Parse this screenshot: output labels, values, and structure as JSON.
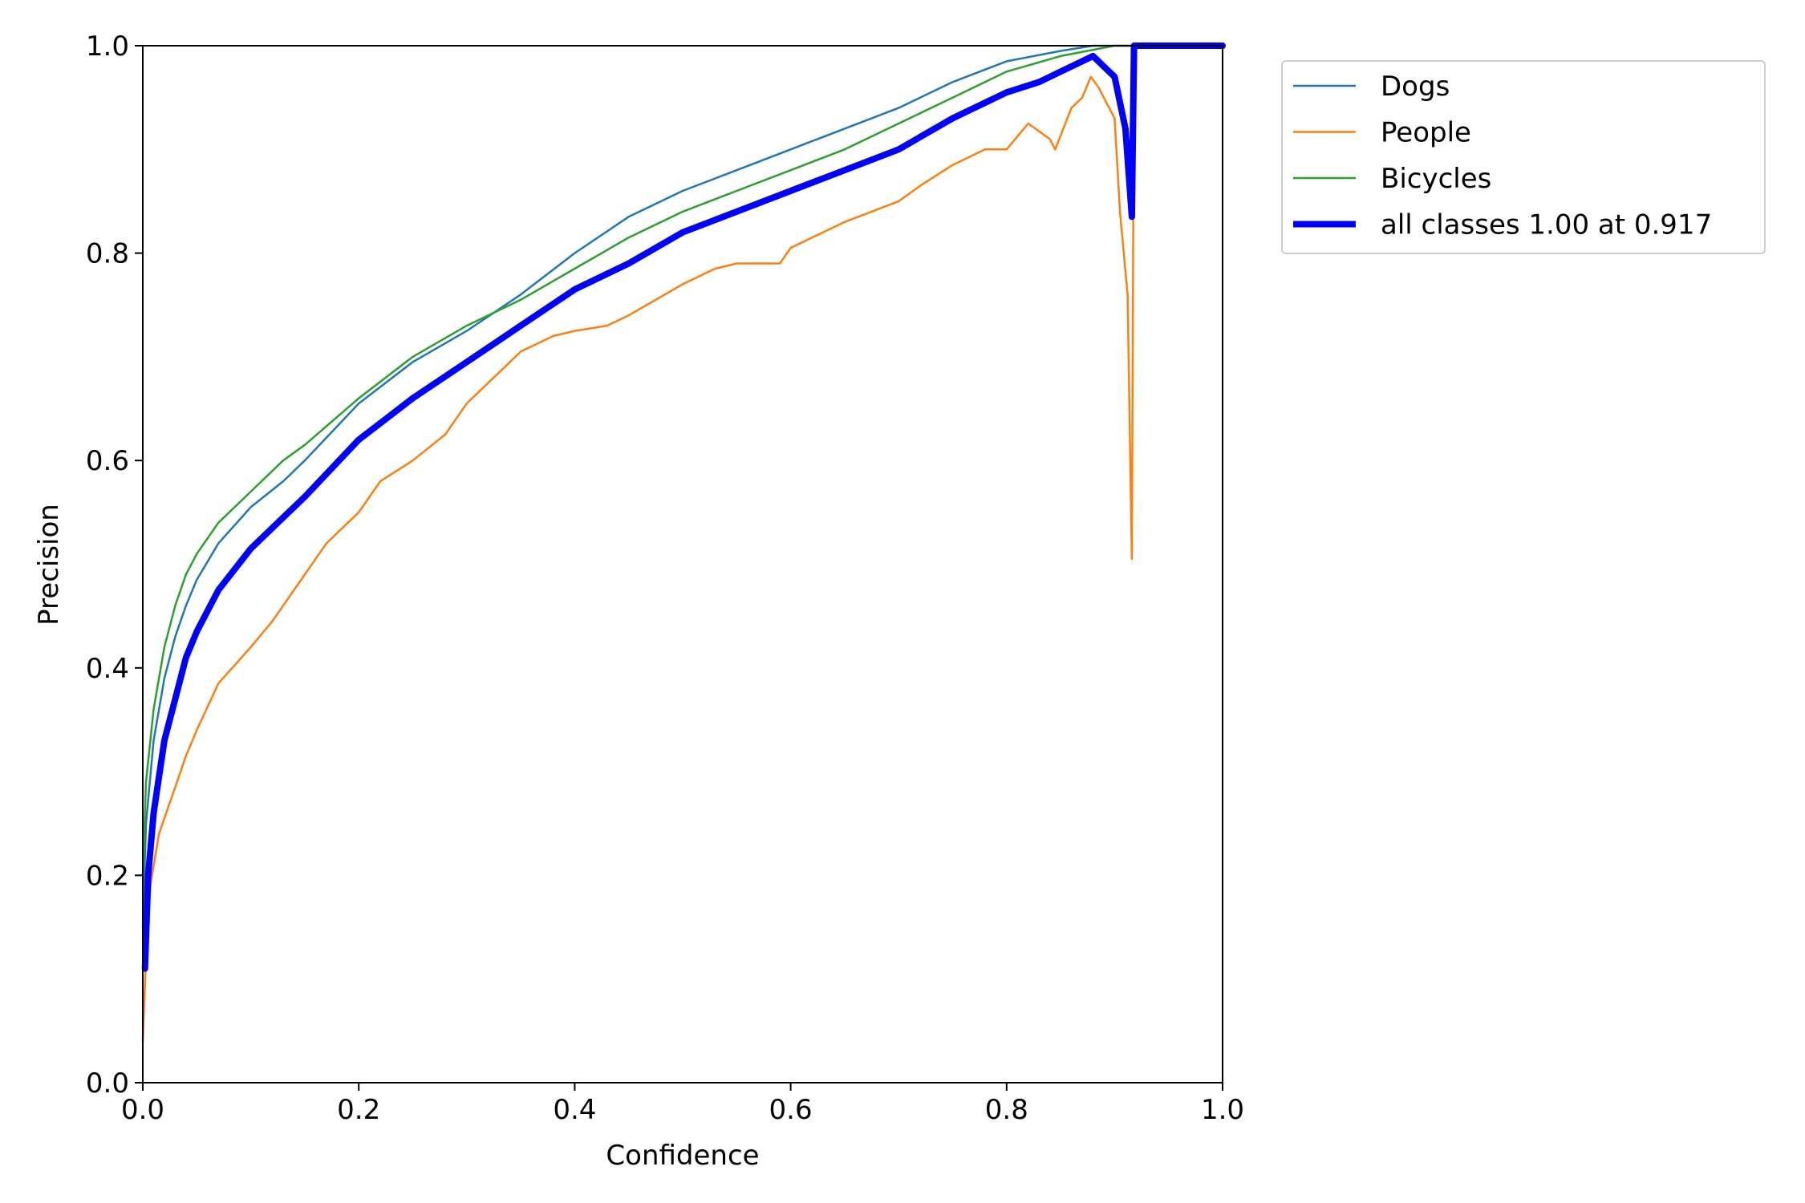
{
  "chart_data": {
    "type": "line",
    "title": "",
    "xlabel": "Confidence",
    "ylabel": "Precision",
    "xlim": [
      0,
      1
    ],
    "ylim": [
      0,
      1
    ],
    "xticks": [
      "0.0",
      "0.2",
      "0.4",
      "0.6",
      "0.8",
      "1.0"
    ],
    "yticks": [
      "0.0",
      "0.2",
      "0.4",
      "0.6",
      "0.8",
      "1.0"
    ],
    "grid": false,
    "legend_position": "outside-top-right",
    "series": [
      {
        "name": "Dogs",
        "color": "#1f77b4",
        "width": "thin",
        "points": [
          [
            0.0,
            0.15
          ],
          [
            0.003,
            0.25
          ],
          [
            0.01,
            0.33
          ],
          [
            0.02,
            0.39
          ],
          [
            0.03,
            0.43
          ],
          [
            0.04,
            0.46
          ],
          [
            0.05,
            0.485
          ],
          [
            0.07,
            0.52
          ],
          [
            0.1,
            0.555
          ],
          [
            0.13,
            0.58
          ],
          [
            0.15,
            0.6
          ],
          [
            0.2,
            0.655
          ],
          [
            0.25,
            0.695
          ],
          [
            0.3,
            0.725
          ],
          [
            0.35,
            0.76
          ],
          [
            0.4,
            0.8
          ],
          [
            0.45,
            0.835
          ],
          [
            0.5,
            0.86
          ],
          [
            0.55,
            0.88
          ],
          [
            0.6,
            0.9
          ],
          [
            0.65,
            0.92
          ],
          [
            0.7,
            0.94
          ],
          [
            0.75,
            0.965
          ],
          [
            0.8,
            0.985
          ],
          [
            0.85,
            0.995
          ],
          [
            0.88,
            1.0
          ],
          [
            1.0,
            1.0
          ]
        ]
      },
      {
        "name": "People",
        "color": "#ff7f0e",
        "width": "thin",
        "points": [
          [
            0.0,
            0.04
          ],
          [
            0.003,
            0.12
          ],
          [
            0.007,
            0.19
          ],
          [
            0.015,
            0.24
          ],
          [
            0.03,
            0.285
          ],
          [
            0.04,
            0.315
          ],
          [
            0.05,
            0.34
          ],
          [
            0.07,
            0.385
          ],
          [
            0.1,
            0.42
          ],
          [
            0.12,
            0.445
          ],
          [
            0.15,
            0.49
          ],
          [
            0.17,
            0.52
          ],
          [
            0.2,
            0.55
          ],
          [
            0.22,
            0.58
          ],
          [
            0.25,
            0.6
          ],
          [
            0.28,
            0.625
          ],
          [
            0.3,
            0.655
          ],
          [
            0.33,
            0.685
          ],
          [
            0.35,
            0.705
          ],
          [
            0.38,
            0.72
          ],
          [
            0.4,
            0.725
          ],
          [
            0.43,
            0.73
          ],
          [
            0.45,
            0.74
          ],
          [
            0.5,
            0.77
          ],
          [
            0.53,
            0.785
          ],
          [
            0.55,
            0.79
          ],
          [
            0.59,
            0.79
          ],
          [
            0.6,
            0.805
          ],
          [
            0.65,
            0.83
          ],
          [
            0.7,
            0.85
          ],
          [
            0.72,
            0.865
          ],
          [
            0.75,
            0.885
          ],
          [
            0.78,
            0.9
          ],
          [
            0.8,
            0.9
          ],
          [
            0.82,
            0.925
          ],
          [
            0.84,
            0.91
          ],
          [
            0.845,
            0.9
          ],
          [
            0.86,
            0.94
          ],
          [
            0.87,
            0.95
          ],
          [
            0.878,
            0.97
          ],
          [
            0.885,
            0.96
          ],
          [
            0.89,
            0.95
          ],
          [
            0.9,
            0.93
          ],
          [
            0.905,
            0.84
          ],
          [
            0.912,
            0.76
          ],
          [
            0.916,
            0.505
          ],
          [
            0.918,
            1.0
          ],
          [
            1.0,
            1.0
          ]
        ]
      },
      {
        "name": "Bicycles",
        "color": "#2ca02c",
        "width": "thin",
        "points": [
          [
            0.0,
            0.2
          ],
          [
            0.003,
            0.29
          ],
          [
            0.01,
            0.36
          ],
          [
            0.02,
            0.42
          ],
          [
            0.03,
            0.46
          ],
          [
            0.04,
            0.49
          ],
          [
            0.05,
            0.51
          ],
          [
            0.07,
            0.54
          ],
          [
            0.1,
            0.57
          ],
          [
            0.13,
            0.6
          ],
          [
            0.15,
            0.615
          ],
          [
            0.2,
            0.66
          ],
          [
            0.25,
            0.7
          ],
          [
            0.3,
            0.73
          ],
          [
            0.35,
            0.755
          ],
          [
            0.4,
            0.785
          ],
          [
            0.45,
            0.815
          ],
          [
            0.5,
            0.84
          ],
          [
            0.55,
            0.86
          ],
          [
            0.6,
            0.88
          ],
          [
            0.65,
            0.9
          ],
          [
            0.7,
            0.925
          ],
          [
            0.75,
            0.95
          ],
          [
            0.8,
            0.975
          ],
          [
            0.85,
            0.99
          ],
          [
            0.9,
            1.0
          ],
          [
            1.0,
            1.0
          ]
        ]
      },
      {
        "name": "all classes 1.00 at 0.917",
        "color": "#0000ff",
        "width": "thick",
        "points": [
          [
            0.002,
            0.11
          ],
          [
            0.005,
            0.2
          ],
          [
            0.01,
            0.26
          ],
          [
            0.02,
            0.33
          ],
          [
            0.03,
            0.37
          ],
          [
            0.04,
            0.41
          ],
          [
            0.05,
            0.435
          ],
          [
            0.07,
            0.475
          ],
          [
            0.1,
            0.515
          ],
          [
            0.13,
            0.545
          ],
          [
            0.15,
            0.565
          ],
          [
            0.2,
            0.62
          ],
          [
            0.25,
            0.66
          ],
          [
            0.3,
            0.695
          ],
          [
            0.35,
            0.73
          ],
          [
            0.4,
            0.765
          ],
          [
            0.45,
            0.79
          ],
          [
            0.5,
            0.82
          ],
          [
            0.55,
            0.84
          ],
          [
            0.6,
            0.86
          ],
          [
            0.65,
            0.88
          ],
          [
            0.7,
            0.9
          ],
          [
            0.75,
            0.93
          ],
          [
            0.8,
            0.955
          ],
          [
            0.83,
            0.965
          ],
          [
            0.85,
            0.975
          ],
          [
            0.87,
            0.985
          ],
          [
            0.88,
            0.99
          ],
          [
            0.89,
            0.98
          ],
          [
            0.9,
            0.97
          ],
          [
            0.91,
            0.92
          ],
          [
            0.916,
            0.835
          ],
          [
            0.918,
            1.0
          ],
          [
            1.0,
            1.0
          ]
        ]
      }
    ]
  }
}
